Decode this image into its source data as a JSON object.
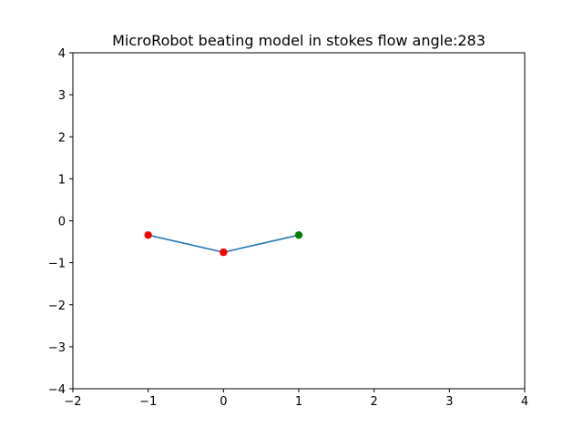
{
  "chart_data": {
    "type": "line",
    "title": "MicroRobot beating model in stokes flow angle:283",
    "xlabel": "",
    "ylabel": "",
    "xlim": [
      -2,
      4
    ],
    "ylim": [
      -4,
      4
    ],
    "xticks": [
      -2,
      -1,
      0,
      1,
      2,
      3,
      4
    ],
    "yticks": [
      -4,
      -3,
      -2,
      -1,
      0,
      1,
      2,
      3,
      4
    ],
    "grid": false,
    "series": [
      {
        "x": [
          -1,
          0,
          1
        ],
        "y": [
          -0.34,
          -0.75,
          -0.34
        ],
        "color": "#1f77b4"
      }
    ],
    "markers": [
      {
        "x": -1,
        "y": -0.34,
        "color": "#ff0000"
      },
      {
        "x": 0,
        "y": -0.75,
        "color": "#ff0000"
      },
      {
        "x": 1,
        "y": -0.34,
        "color": "#008000"
      }
    ]
  }
}
